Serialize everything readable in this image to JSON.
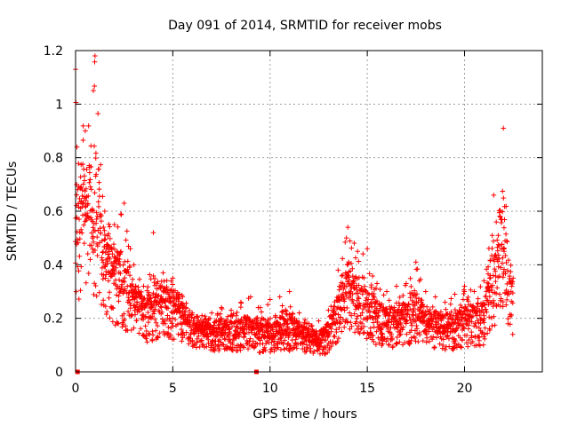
{
  "chart_data": {
    "type": "scatter",
    "title": "Day 091 of 2014, SRMTID for receiver mobs",
    "xlabel": "GPS time / hours",
    "ylabel": "SRMTID / TECUs",
    "xlim": [
      0,
      24
    ],
    "ylim": [
      0,
      1.2
    ],
    "xticks": [
      0,
      5,
      10,
      15,
      20
    ],
    "xtick_labels": [
      "0",
      "5",
      "10",
      "15",
      "20"
    ],
    "yticks": [
      0,
      0.2,
      0.4,
      0.6,
      0.8,
      1,
      1.2
    ],
    "ytick_labels": [
      "0",
      "0.2",
      "0.4",
      "0.6",
      "0.8",
      "1",
      "1.2"
    ],
    "grid": true,
    "marker": "+",
    "color": "#ff0000",
    "zero_markers": [
      {
        "x": 0.1,
        "y": 0
      },
      {
        "x": 9.3,
        "y": 0
      }
    ],
    "envelope": {
      "x": [
        0,
        0.5,
        1,
        1.5,
        2,
        2.5,
        3,
        3.5,
        4,
        4.5,
        5,
        5.5,
        6,
        6.5,
        7,
        7.5,
        8,
        8.5,
        9,
        9.5,
        10,
        10.5,
        11,
        11.5,
        12,
        12.5,
        13,
        13.5,
        14,
        14.5,
        15,
        15.5,
        16,
        16.5,
        17,
        17.5,
        18,
        18.5,
        19,
        19.5,
        20,
        20.5,
        21,
        21.5,
        22,
        22.5
      ],
      "median": [
        0.45,
        0.55,
        0.5,
        0.38,
        0.32,
        0.28,
        0.24,
        0.2,
        0.2,
        0.24,
        0.22,
        0.2,
        0.15,
        0.14,
        0.14,
        0.14,
        0.13,
        0.14,
        0.14,
        0.13,
        0.13,
        0.14,
        0.14,
        0.13,
        0.11,
        0.1,
        0.13,
        0.2,
        0.28,
        0.22,
        0.22,
        0.18,
        0.16,
        0.17,
        0.18,
        0.2,
        0.17,
        0.15,
        0.14,
        0.15,
        0.17,
        0.17,
        0.18,
        0.3,
        0.38,
        0.24
      ],
      "max": [
        1.13,
        0.9,
        1.18,
        0.6,
        0.55,
        0.63,
        0.4,
        0.32,
        0.52,
        0.37,
        0.35,
        0.28,
        0.22,
        0.21,
        0.22,
        0.24,
        0.23,
        0.26,
        0.28,
        0.24,
        0.27,
        0.28,
        0.3,
        0.22,
        0.18,
        0.19,
        0.23,
        0.38,
        0.54,
        0.45,
        0.46,
        0.33,
        0.3,
        0.32,
        0.33,
        0.41,
        0.3,
        0.28,
        0.26,
        0.29,
        0.32,
        0.3,
        0.34,
        0.66,
        0.91,
        0.35
      ]
    }
  }
}
